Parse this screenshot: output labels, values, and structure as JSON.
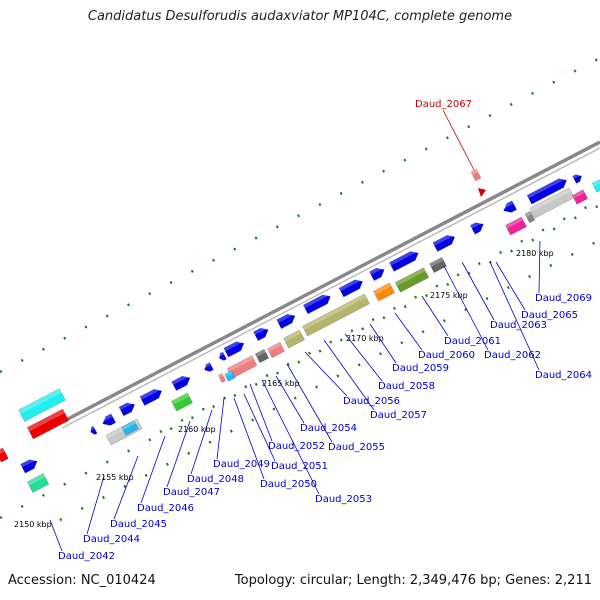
{
  "title": "Candidatus Desulforudis audaxviator MP104C, complete genome",
  "footer": {
    "accession": "Accession: NC_010424",
    "summary": "Topology: circular; Length: 2,349,476 bp; Genes: 2,211"
  },
  "highlight_gene": "Daud_2067",
  "scale_labels": [
    "2150 kbp",
    "2155 kbp",
    "2160 kbp",
    "2165 kbp",
    "2170 kbp",
    "2175 kbp",
    "2180 kbp"
  ],
  "gene_labels": [
    "Daud_2042",
    "Daud_2044",
    "Daud_2045",
    "Daud_2046",
    "Daud_2047",
    "Daud_2048",
    "Daud_2049",
    "Daud_2050",
    "Daud_2051",
    "Daud_2052",
    "Daud_2053",
    "Daud_2054",
    "Daud_2055",
    "Daud_2056",
    "Daud_2057",
    "Daud_2058",
    "Daud_2059",
    "Daud_2060",
    "Daud_2061",
    "Daud_2062",
    "Daud_2063",
    "Daud_2064",
    "Daud_2065",
    "Daud_2069"
  ],
  "colors": {
    "cds": "#0000e6",
    "backbone": "#888888",
    "tick": "#1a7a1a",
    "label": "#0000cc",
    "highlight": "#cc0000"
  }
}
